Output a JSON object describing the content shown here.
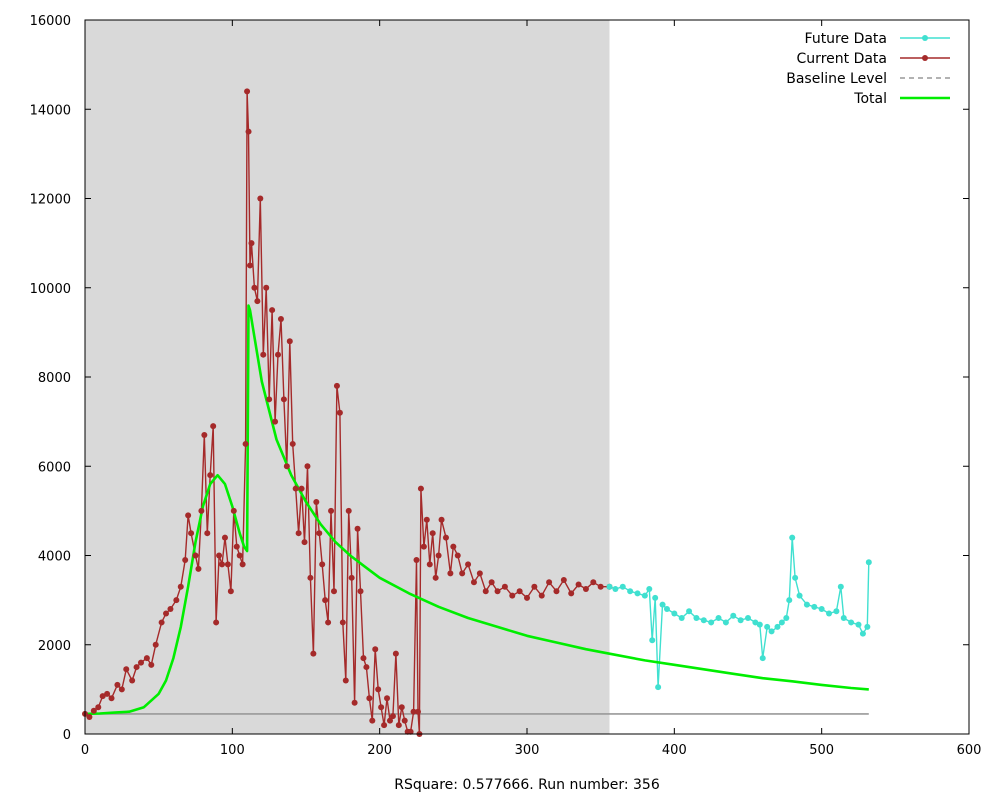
{
  "chart_data": {
    "type": "line",
    "caption": "RSquare: 0.577666. Run number: 356",
    "xlim": [
      0,
      600
    ],
    "ylim": [
      0,
      16000
    ],
    "x_ticks": [
      0,
      100,
      200,
      300,
      400,
      500,
      600
    ],
    "y_ticks": [
      0,
      2000,
      4000,
      6000,
      8000,
      10000,
      12000,
      14000,
      16000
    ],
    "shaded_region": {
      "x": [
        0,
        356
      ],
      "color": "#d9d9d9"
    },
    "legend_position": "top-right",
    "series": [
      {
        "name": "Future Data",
        "color": "#40e0d0",
        "marker": true,
        "x": [
          356,
          360,
          365,
          370,
          375,
          380,
          383,
          385,
          387,
          389,
          392,
          395,
          400,
          405,
          410,
          415,
          420,
          425,
          430,
          435,
          440,
          445,
          450,
          455,
          458,
          460,
          463,
          466,
          470,
          473,
          476,
          478,
          480,
          482,
          485,
          490,
          495,
          500,
          505,
          510,
          513,
          515,
          520,
          525,
          528,
          531,
          532
        ],
        "y": [
          3300,
          3250,
          3300,
          3200,
          3150,
          3100,
          3250,
          2100,
          3050,
          1050,
          2900,
          2800,
          2700,
          2600,
          2750,
          2600,
          2550,
          2500,
          2600,
          2500,
          2650,
          2550,
          2600,
          2500,
          2450,
          1700,
          2400,
          2300,
          2400,
          2500,
          2600,
          3000,
          4400,
          3500,
          3100,
          2900,
          2850,
          2800,
          2700,
          2750,
          3300,
          2600,
          2500,
          2450,
          2250,
          2400,
          3850
        ]
      },
      {
        "name": "Current Data",
        "color": "#a52a2a",
        "marker": true,
        "x": [
          0,
          3,
          6,
          9,
          12,
          15,
          18,
          22,
          25,
          28,
          32,
          35,
          38,
          42,
          45,
          48,
          52,
          55,
          58,
          62,
          65,
          68,
          70,
          72,
          75,
          77,
          79,
          81,
          83,
          85,
          87,
          89,
          91,
          93,
          95,
          97,
          99,
          101,
          103,
          105,
          107,
          109,
          110,
          111,
          112,
          113,
          115,
          117,
          119,
          121,
          123,
          125,
          127,
          129,
          131,
          133,
          135,
          137,
          139,
          141,
          143,
          145,
          147,
          149,
          151,
          153,
          155,
          157,
          159,
          161,
          163,
          165,
          167,
          169,
          171,
          173,
          175,
          177,
          179,
          181,
          183,
          185,
          187,
          189,
          191,
          193,
          195,
          197,
          199,
          201,
          203,
          205,
          207,
          209,
          211,
          213,
          215,
          217,
          219,
          221,
          223,
          225,
          226,
          227,
          228,
          230,
          232,
          234,
          236,
          238,
          240,
          242,
          245,
          248,
          250,
          253,
          256,
          260,
          264,
          268,
          272,
          276,
          280,
          285,
          290,
          295,
          300,
          305,
          310,
          315,
          320,
          325,
          330,
          335,
          340,
          345,
          350,
          356
        ],
        "y": [
          450,
          380,
          520,
          600,
          850,
          900,
          800,
          1100,
          1000,
          1450,
          1200,
          1500,
          1600,
          1700,
          1550,
          2000,
          2500,
          2700,
          2800,
          3000,
          3300,
          3900,
          4900,
          4500,
          4000,
          3700,
          5000,
          6700,
          4500,
          5800,
          6900,
          2500,
          4000,
          3800,
          4400,
          3800,
          3200,
          5000,
          4200,
          4000,
          3800,
          6500,
          14400,
          13500,
          10500,
          11000,
          10000,
          9700,
          12000,
          8500,
          10000,
          7500,
          9500,
          7000,
          8500,
          9300,
          7500,
          6000,
          8800,
          6500,
          5500,
          4500,
          5500,
          4300,
          6000,
          3500,
          1800,
          5200,
          4500,
          3800,
          3000,
          2500,
          5000,
          3200,
          7800,
          7200,
          2500,
          1200,
          5000,
          3500,
          700,
          4600,
          3200,
          1700,
          1500,
          800,
          300,
          1900,
          1000,
          600,
          200,
          800,
          300,
          400,
          1800,
          200,
          600,
          300,
          50,
          50,
          500,
          3900,
          500,
          0,
          5500,
          4200,
          4800,
          3800,
          4500,
          3500,
          4000,
          4800,
          4400,
          3600,
          4200,
          4000,
          3600,
          3800,
          3400,
          3600,
          3200,
          3400,
          3200,
          3300,
          3100,
          3200,
          3050,
          3300,
          3100,
          3400,
          3200,
          3450,
          3150,
          3350,
          3250,
          3400,
          3300,
          3300
        ]
      },
      {
        "name": "Baseline Level",
        "color": "#999999",
        "marker": false,
        "x": [
          0,
          532
        ],
        "y": [
          450,
          450
        ]
      },
      {
        "name": "Total",
        "color": "#00ee00",
        "marker": false,
        "x": [
          0,
          10,
          20,
          30,
          40,
          50,
          55,
          60,
          65,
          70,
          75,
          80,
          85,
          90,
          95,
          100,
          105,
          108,
          110,
          111,
          112,
          115,
          120,
          130,
          140,
          150,
          160,
          170,
          180,
          190,
          200,
          220,
          240,
          260,
          280,
          300,
          320,
          340,
          356,
          380,
          400,
          420,
          440,
          460,
          480,
          500,
          520,
          532
        ],
        "y": [
          450,
          460,
          480,
          500,
          600,
          900,
          1200,
          1700,
          2400,
          3300,
          4300,
          5100,
          5600,
          5800,
          5600,
          5100,
          4500,
          4200,
          4100,
          9600,
          9500,
          8900,
          7900,
          6600,
          5800,
          5200,
          4700,
          4300,
          4000,
          3750,
          3500,
          3150,
          2850,
          2600,
          2400,
          2200,
          2050,
          1900,
          1800,
          1650,
          1550,
          1450,
          1350,
          1250,
          1180,
          1100,
          1030,
          1000
        ]
      }
    ]
  }
}
